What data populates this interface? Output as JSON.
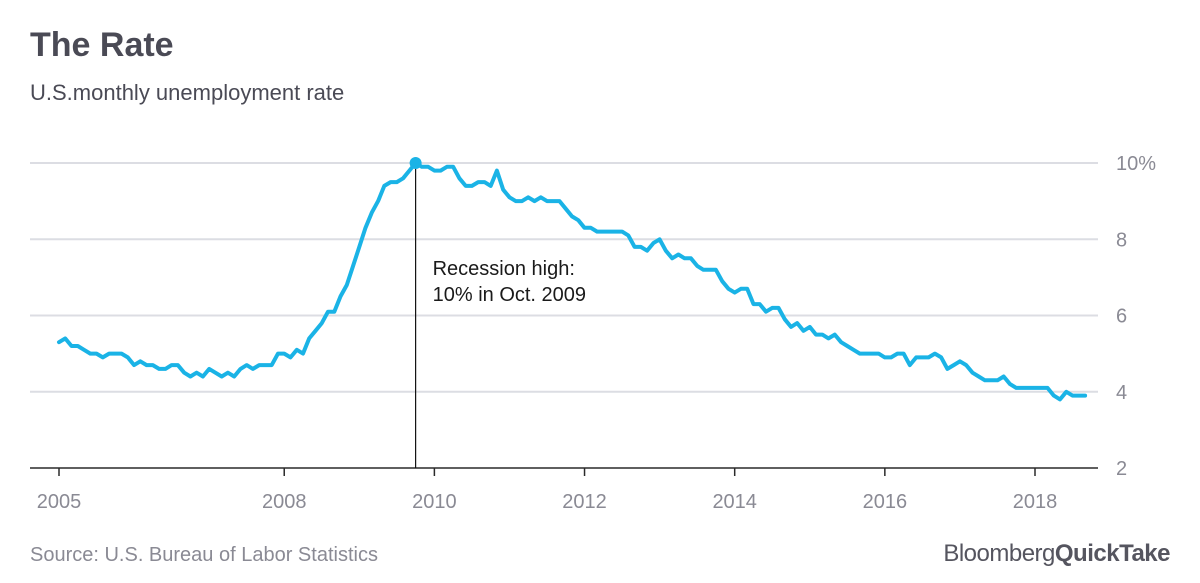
{
  "header": {
    "title": "The Rate",
    "subtitle": "U.S.monthly unemployment rate"
  },
  "footer": {
    "source": "Source: U.S. Bureau of Labor Statistics",
    "brand_part1": "Bloomberg",
    "brand_part2": "QuickTake"
  },
  "chart_data": {
    "type": "line",
    "title": "The Rate",
    "subtitle": "U.S.monthly unemployment rate",
    "xlabel": "",
    "ylabel": "",
    "x_unit": "year",
    "xlim": [
      2005,
      2019
    ],
    "ylim": [
      2,
      10
    ],
    "y_ticks": [
      2,
      4,
      6,
      8,
      10
    ],
    "y_tick_labels": [
      "2",
      "4",
      "6",
      "8",
      "10%"
    ],
    "x_ticks": [
      2005,
      2008,
      2010,
      2012,
      2014,
      2016,
      2018
    ],
    "x_tick_labels": [
      "2005",
      "2008",
      "2010",
      "2012",
      "2014",
      "2016",
      "2018"
    ],
    "grid": "horizontal",
    "y_axis_side": "right",
    "series_color": "#1ab3e6",
    "series": [
      {
        "values": [
          [
            2005.0,
            5.3
          ],
          [
            2005.083,
            5.4
          ],
          [
            2005.167,
            5.2
          ],
          [
            2005.25,
            5.2
          ],
          [
            2005.333,
            5.1
          ],
          [
            2005.417,
            5.0
          ],
          [
            2005.5,
            5.0
          ],
          [
            2005.583,
            4.9
          ],
          [
            2005.667,
            5.0
          ],
          [
            2005.75,
            5.0
          ],
          [
            2005.833,
            5.0
          ],
          [
            2005.917,
            4.9
          ],
          [
            2006.0,
            4.7
          ],
          [
            2006.083,
            4.8
          ],
          [
            2006.167,
            4.7
          ],
          [
            2006.25,
            4.7
          ],
          [
            2006.333,
            4.6
          ],
          [
            2006.417,
            4.6
          ],
          [
            2006.5,
            4.7
          ],
          [
            2006.583,
            4.7
          ],
          [
            2006.667,
            4.5
          ],
          [
            2006.75,
            4.4
          ],
          [
            2006.833,
            4.5
          ],
          [
            2006.917,
            4.4
          ],
          [
            2007.0,
            4.6
          ],
          [
            2007.083,
            4.5
          ],
          [
            2007.167,
            4.4
          ],
          [
            2007.25,
            4.5
          ],
          [
            2007.333,
            4.4
          ],
          [
            2007.417,
            4.6
          ],
          [
            2007.5,
            4.7
          ],
          [
            2007.583,
            4.6
          ],
          [
            2007.667,
            4.7
          ],
          [
            2007.75,
            4.7
          ],
          [
            2007.833,
            4.7
          ],
          [
            2007.917,
            5.0
          ],
          [
            2008.0,
            5.0
          ],
          [
            2008.083,
            4.9
          ],
          [
            2008.167,
            5.1
          ],
          [
            2008.25,
            5.0
          ],
          [
            2008.333,
            5.4
          ],
          [
            2008.417,
            5.6
          ],
          [
            2008.5,
            5.8
          ],
          [
            2008.583,
            6.1
          ],
          [
            2008.667,
            6.1
          ],
          [
            2008.75,
            6.5
          ],
          [
            2008.833,
            6.8
          ],
          [
            2008.917,
            7.3
          ],
          [
            2009.0,
            7.8
          ],
          [
            2009.083,
            8.3
          ],
          [
            2009.167,
            8.7
          ],
          [
            2009.25,
            9.0
          ],
          [
            2009.333,
            9.4
          ],
          [
            2009.417,
            9.5
          ],
          [
            2009.5,
            9.5
          ],
          [
            2009.583,
            9.6
          ],
          [
            2009.667,
            9.8
          ],
          [
            2009.75,
            10.0
          ],
          [
            2009.833,
            9.9
          ],
          [
            2009.917,
            9.9
          ],
          [
            2010.0,
            9.8
          ],
          [
            2010.083,
            9.8
          ],
          [
            2010.167,
            9.9
          ],
          [
            2010.25,
            9.9
          ],
          [
            2010.333,
            9.6
          ],
          [
            2010.417,
            9.4
          ],
          [
            2010.5,
            9.4
          ],
          [
            2010.583,
            9.5
          ],
          [
            2010.667,
            9.5
          ],
          [
            2010.75,
            9.4
          ],
          [
            2010.833,
            9.8
          ],
          [
            2010.917,
            9.3
          ],
          [
            2011.0,
            9.1
          ],
          [
            2011.083,
            9.0
          ],
          [
            2011.167,
            9.0
          ],
          [
            2011.25,
            9.1
          ],
          [
            2011.333,
            9.0
          ],
          [
            2011.417,
            9.1
          ],
          [
            2011.5,
            9.0
          ],
          [
            2011.583,
            9.0
          ],
          [
            2011.667,
            9.0
          ],
          [
            2011.75,
            8.8
          ],
          [
            2011.833,
            8.6
          ],
          [
            2011.917,
            8.5
          ],
          [
            2012.0,
            8.3
          ],
          [
            2012.083,
            8.3
          ],
          [
            2012.167,
            8.2
          ],
          [
            2012.25,
            8.2
          ],
          [
            2012.333,
            8.2
          ],
          [
            2012.417,
            8.2
          ],
          [
            2012.5,
            8.2
          ],
          [
            2012.583,
            8.1
          ],
          [
            2012.667,
            7.8
          ],
          [
            2012.75,
            7.8
          ],
          [
            2012.833,
            7.7
          ],
          [
            2012.917,
            7.9
          ],
          [
            2013.0,
            8.0
          ],
          [
            2013.083,
            7.7
          ],
          [
            2013.167,
            7.5
          ],
          [
            2013.25,
            7.6
          ],
          [
            2013.333,
            7.5
          ],
          [
            2013.417,
            7.5
          ],
          [
            2013.5,
            7.3
          ],
          [
            2013.583,
            7.2
          ],
          [
            2013.667,
            7.2
          ],
          [
            2013.75,
            7.2
          ],
          [
            2013.833,
            6.9
          ],
          [
            2013.917,
            6.7
          ],
          [
            2014.0,
            6.6
          ],
          [
            2014.083,
            6.7
          ],
          [
            2014.167,
            6.7
          ],
          [
            2014.25,
            6.3
          ],
          [
            2014.333,
            6.3
          ],
          [
            2014.417,
            6.1
          ],
          [
            2014.5,
            6.2
          ],
          [
            2014.583,
            6.2
          ],
          [
            2014.667,
            5.9
          ],
          [
            2014.75,
            5.7
          ],
          [
            2014.833,
            5.8
          ],
          [
            2014.917,
            5.6
          ],
          [
            2015.0,
            5.7
          ],
          [
            2015.083,
            5.5
          ],
          [
            2015.167,
            5.5
          ],
          [
            2015.25,
            5.4
          ],
          [
            2015.333,
            5.5
          ],
          [
            2015.417,
            5.3
          ],
          [
            2015.5,
            5.2
          ],
          [
            2015.583,
            5.1
          ],
          [
            2015.667,
            5.0
          ],
          [
            2015.75,
            5.0
          ],
          [
            2015.833,
            5.0
          ],
          [
            2015.917,
            5.0
          ],
          [
            2016.0,
            4.9
          ],
          [
            2016.083,
            4.9
          ],
          [
            2016.167,
            5.0
          ],
          [
            2016.25,
            5.0
          ],
          [
            2016.333,
            4.7
          ],
          [
            2016.417,
            4.9
          ],
          [
            2016.5,
            4.9
          ],
          [
            2016.583,
            4.9
          ],
          [
            2016.667,
            5.0
          ],
          [
            2016.75,
            4.9
          ],
          [
            2016.833,
            4.6
          ],
          [
            2016.917,
            4.7
          ],
          [
            2017.0,
            4.8
          ],
          [
            2017.083,
            4.7
          ],
          [
            2017.167,
            4.5
          ],
          [
            2017.25,
            4.4
          ],
          [
            2017.333,
            4.3
          ],
          [
            2017.417,
            4.3
          ],
          [
            2017.5,
            4.3
          ],
          [
            2017.583,
            4.4
          ],
          [
            2017.667,
            4.2
          ],
          [
            2017.75,
            4.1
          ],
          [
            2017.833,
            4.1
          ],
          [
            2017.917,
            4.1
          ],
          [
            2018.0,
            4.1
          ],
          [
            2018.083,
            4.1
          ],
          [
            2018.167,
            4.1
          ],
          [
            2018.25,
            3.9
          ],
          [
            2018.333,
            3.8
          ],
          [
            2018.417,
            4.0
          ],
          [
            2018.5,
            3.9
          ],
          [
            2018.583,
            3.9
          ],
          [
            2018.667,
            3.9
          ]
        ]
      }
    ],
    "highlight": {
      "x": 2009.75,
      "y": 10.0
    },
    "annotation_lines": [
      "Recession high:",
      "10% in Oct. 2009"
    ]
  }
}
